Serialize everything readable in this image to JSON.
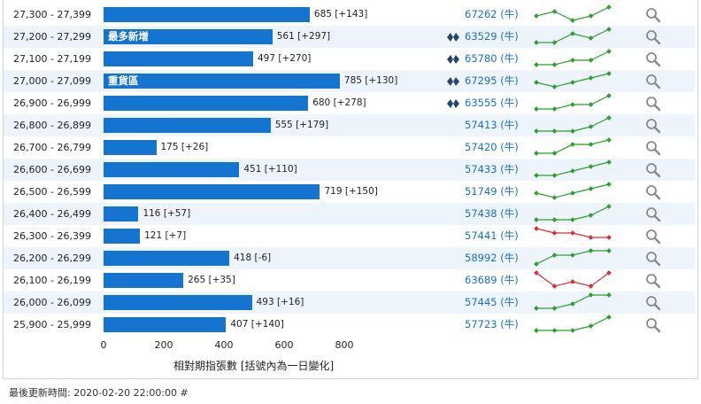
{
  "chart_data": {
    "type": "bar",
    "orientation": "horizontal",
    "xlabel": "相對期指張數 [括號內為一日變化]",
    "xlim": [
      0,
      800
    ],
    "x_ticks": [
      "0",
      "200",
      "400",
      "600",
      "800"
    ],
    "rows": [
      {
        "range": "27,300 - 27,399",
        "value": 685,
        "change": "[+143]",
        "tag": "",
        "code": "67262",
        "dir": "(牛)",
        "market_icon": false,
        "trend": "up",
        "spark": [
          1,
          2,
          0,
          1,
          3
        ]
      },
      {
        "range": "27,200 - 27,299",
        "value": 561,
        "change": "[+297]",
        "tag": "最多新增",
        "code": "63529",
        "dir": "(牛)",
        "market_icon": true,
        "trend": "up",
        "spark": [
          0,
          0,
          2,
          1,
          3
        ]
      },
      {
        "range": "27,100 - 27,199",
        "value": 497,
        "change": "[+270]",
        "tag": "",
        "code": "65780",
        "dir": "(牛)",
        "market_icon": true,
        "trend": "up",
        "spark": [
          0,
          0,
          1,
          1,
          3
        ]
      },
      {
        "range": "27,000 - 27,099",
        "value": 785,
        "change": "[+130]",
        "tag": "重貨區",
        "code": "67295",
        "dir": "(牛)",
        "market_icon": true,
        "trend": "up",
        "spark": [
          1,
          0,
          1,
          2,
          3
        ]
      },
      {
        "range": "26,900 - 26,999",
        "value": 680,
        "change": "[+278]",
        "tag": "",
        "code": "63555",
        "dir": "(牛)",
        "market_icon": true,
        "trend": "up",
        "spark": [
          0,
          0,
          1,
          1,
          3
        ]
      },
      {
        "range": "26,800 - 26,899",
        "value": 555,
        "change": "[+179]",
        "tag": "",
        "code": "57413",
        "dir": "(牛)",
        "market_icon": false,
        "trend": "up",
        "spark": [
          0,
          0,
          0,
          1,
          3
        ]
      },
      {
        "range": "26,700 - 26,799",
        "value": 175,
        "change": "[+26]",
        "tag": "",
        "code": "57420",
        "dir": "(牛)",
        "market_icon": false,
        "trend": "up",
        "spark": [
          0,
          0,
          2,
          2,
          3
        ]
      },
      {
        "range": "26,600 - 26,699",
        "value": 451,
        "change": "[+110]",
        "tag": "",
        "code": "57433",
        "dir": "(牛)",
        "market_icon": false,
        "trend": "up",
        "spark": [
          0,
          0,
          1,
          2,
          3
        ]
      },
      {
        "range": "26,500 - 26,599",
        "value": 719,
        "change": "[+150]",
        "tag": "",
        "code": "51749",
        "dir": "(牛)",
        "market_icon": false,
        "trend": "up",
        "spark": [
          1,
          0,
          1,
          2,
          3
        ]
      },
      {
        "range": "26,400 - 26,499",
        "value": 116,
        "change": "[+57]",
        "tag": "",
        "code": "57438",
        "dir": "(牛)",
        "market_icon": false,
        "trend": "up",
        "spark": [
          0,
          0,
          0,
          1,
          3
        ]
      },
      {
        "range": "26,300 - 26,399",
        "value": 121,
        "change": "[+7]",
        "tag": "",
        "code": "57441",
        "dir": "(牛)",
        "market_icon": false,
        "trend": "down",
        "spark": [
          3,
          2,
          2,
          1,
          1
        ]
      },
      {
        "range": "26,200 - 26,299",
        "value": 418,
        "change": "[-6]",
        "tag": "",
        "code": "58992",
        "dir": "(牛)",
        "market_icon": false,
        "trend": "up",
        "spark": [
          0,
          2,
          2,
          3,
          3
        ]
      },
      {
        "range": "26,100 - 26,199",
        "value": 265,
        "change": "[+35]",
        "tag": "",
        "code": "63689",
        "dir": "(牛)",
        "market_icon": false,
        "trend": "down",
        "spark": [
          3,
          0,
          1,
          0,
          3
        ]
      },
      {
        "range": "26,000 - 26,099",
        "value": 493,
        "change": "[+16]",
        "tag": "",
        "code": "57445",
        "dir": "(牛)",
        "market_icon": false,
        "trend": "up",
        "spark": [
          0,
          0,
          1,
          3,
          3
        ]
      },
      {
        "range": "25,900 - 25,999",
        "value": 407,
        "change": "[+140]",
        "tag": "",
        "code": "57723",
        "dir": "(牛)",
        "market_icon": false,
        "trend": "up",
        "spark": [
          0,
          0,
          0,
          1,
          3
        ]
      }
    ]
  },
  "colors": {
    "bar": "#1674d1",
    "up": "#2e9e2e",
    "down": "#d83030",
    "link": "#1a6fc4",
    "alt_row": "#eef4fb"
  },
  "icons": {
    "market": "hsbc-hexagon-icon",
    "search": "magnifier-icon"
  },
  "footer": {
    "text": "最後更新時間: 2020-02-20 22:00:00 #"
  }
}
